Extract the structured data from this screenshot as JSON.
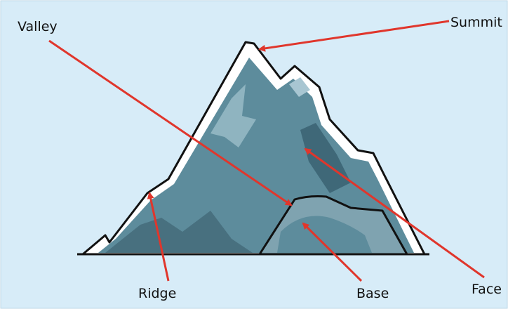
{
  "diagram": {
    "labels": [
      "Valley",
      "Summit",
      "Ridge",
      "Base",
      "Face"
    ]
  }
}
